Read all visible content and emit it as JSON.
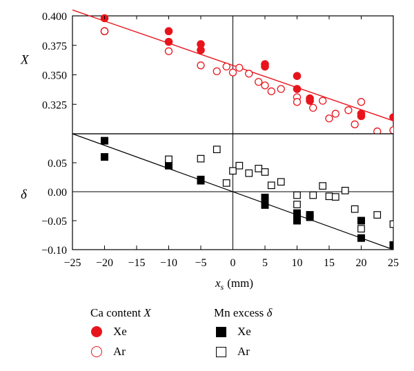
{
  "chart_data": [
    {
      "panel": "top",
      "type": "scatter",
      "ylabel": "X",
      "xlim": [
        -25,
        25
      ],
      "ylim": [
        0.3,
        0.4
      ],
      "yticks": [
        "0.325",
        "0.350",
        "0.375",
        "0.400"
      ],
      "ytick_values": [
        0.325,
        0.35,
        0.375,
        0.4
      ],
      "color": "#e8141c",
      "series": [
        {
          "name": "Xe",
          "marker": "filled-circle",
          "x": [
            -20,
            -20,
            -10,
            -10,
            -5,
            -5,
            5,
            5,
            10,
            10,
            12,
            12,
            20,
            20,
            25
          ],
          "y": [
            0.398,
            0.387,
            0.387,
            0.378,
            0.376,
            0.371,
            0.359,
            0.357,
            0.349,
            0.338,
            0.33,
            0.328,
            0.317,
            0.315,
            0.314
          ]
        },
        {
          "name": "Ar",
          "marker": "open-circle",
          "x": [
            -20,
            -10,
            -5,
            -2.5,
            -1,
            0,
            1,
            2.5,
            4,
            5,
            6,
            7.5,
            10,
            10,
            12.5,
            14,
            15,
            16,
            18,
            19,
            20,
            22.5,
            25
          ],
          "y": [
            0.387,
            0.37,
            0.358,
            0.353,
            0.357,
            0.352,
            0.356,
            0.351,
            0.344,
            0.341,
            0.336,
            0.338,
            0.331,
            0.327,
            0.322,
            0.328,
            0.313,
            0.317,
            0.32,
            0.308,
            0.327,
            0.302,
            0.303
          ]
        }
      ],
      "fit_line": {
        "x": [
          -25,
          25
        ],
        "y": [
          0.405,
          0.311
        ]
      }
    },
    {
      "panel": "bottom",
      "type": "scatter",
      "ylabel": "δ",
      "xlabel": "x",
      "xlabel_subscript": "s",
      "xlabel_unit": "(mm)",
      "xlim": [
        -25,
        25
      ],
      "ylim": [
        -0.1,
        0.1
      ],
      "xticks": [
        "−25",
        "−20",
        "−15",
        "−10",
        "−5",
        "0",
        "5",
        "10",
        "15",
        "20",
        "25"
      ],
      "xtick_values": [
        -25,
        -20,
        -15,
        -10,
        -5,
        0,
        5,
        10,
        15,
        20,
        25
      ],
      "yticks": [
        "−0.10",
        "−0.05",
        "0.00",
        "0.05"
      ],
      "ytick_values": [
        -0.1,
        -0.05,
        0,
        0.05
      ],
      "color": "#000000",
      "series": [
        {
          "name": "Xe",
          "marker": "filled-square",
          "x": [
            -20,
            -20,
            -10,
            -10,
            -5,
            -5,
            5,
            5,
            10,
            10,
            10,
            12,
            12,
            20,
            20,
            25
          ],
          "y": [
            0.088,
            0.06,
            0.047,
            0.045,
            0.021,
            0.019,
            -0.01,
            -0.023,
            -0.037,
            -0.044,
            -0.05,
            -0.04,
            -0.044,
            -0.05,
            -0.08,
            -0.092
          ]
        },
        {
          "name": "Ar",
          "marker": "open-square",
          "x": [
            -10,
            -5,
            -2.5,
            -1,
            0,
            1,
            2.5,
            4,
            5,
            6,
            7.5,
            10,
            10,
            12.5,
            14,
            15,
            16,
            17.5,
            19,
            20,
            22.5,
            25
          ],
          "y": [
            0.056,
            0.057,
            0.073,
            0.015,
            0.036,
            0.045,
            0.032,
            0.04,
            0.034,
            0.011,
            0.017,
            -0.006,
            -0.022,
            -0.006,
            0.01,
            -0.008,
            -0.009,
            0.002,
            -0.03,
            -0.064,
            -0.04,
            -0.056
          ]
        }
      ],
      "fit_line": {
        "x": [
          -25,
          25
        ],
        "y": [
          0.1,
          -0.1
        ]
      }
    }
  ],
  "legend": {
    "ca_title": "Ca content",
    "ca_symbol": "X",
    "mn_title": "Mn excess",
    "mn_symbol": "δ",
    "xe_label": "Xe",
    "ar_label": "Ar"
  }
}
